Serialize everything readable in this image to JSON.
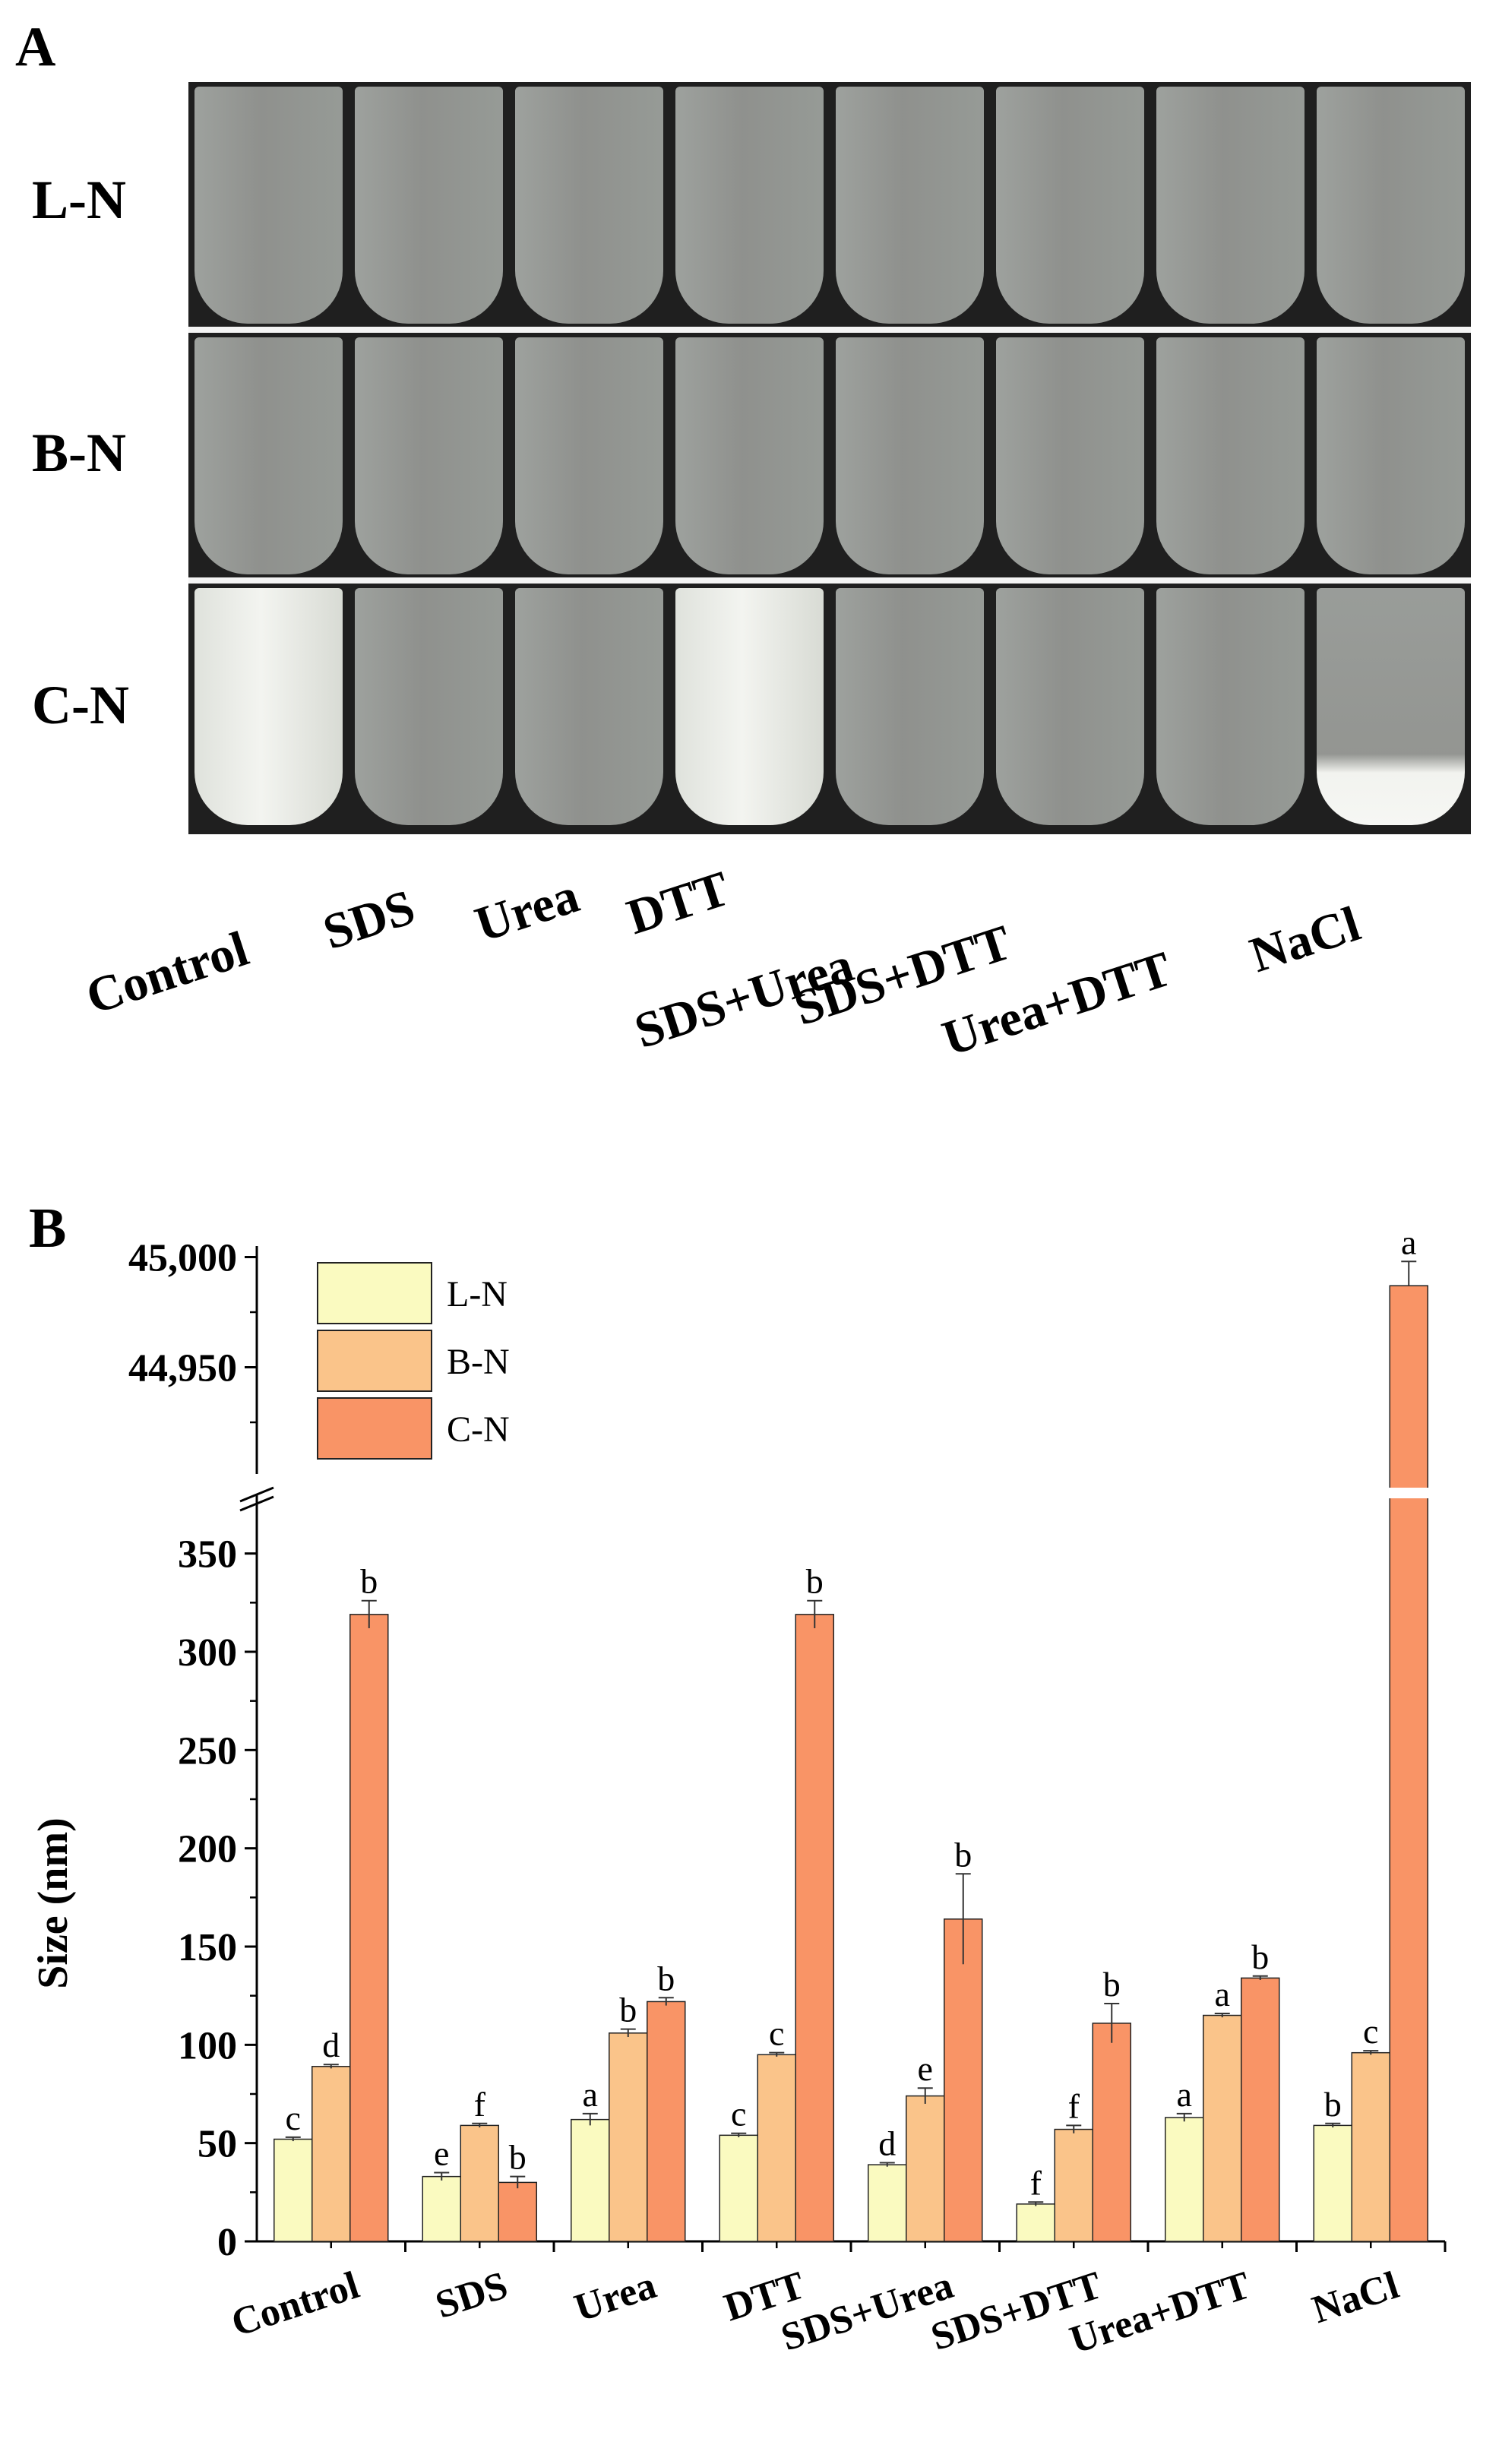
{
  "panel_a": {
    "letter": "A",
    "rows": [
      "L-N",
      "B-N",
      "C-N"
    ],
    "treatments": [
      "Control",
      "SDS",
      "Urea",
      "DTT",
      "SDS+Urea",
      "SDS+DTT",
      "Urea+DTT",
      "NaCl"
    ],
    "cloudy_tubes": {
      "C-N": [
        "Control",
        "DTT"
      ]
    },
    "sediment_tubes": {
      "C-N": [
        "NaCl"
      ]
    }
  },
  "panel_b": {
    "letter": "B"
  },
  "chart_data": {
    "type": "bar",
    "title": "",
    "xlabel": "",
    "ylabel": "Size (nm)",
    "categories": [
      "Control",
      "SDS",
      "Urea",
      "DTT",
      "SDS+Urea",
      "SDS+DTT",
      "Urea+DTT",
      "NaCl"
    ],
    "ylim_lower": [
      0,
      375
    ],
    "ylim_upper": [
      44905,
      45005
    ],
    "axis_break": true,
    "yticks_lower": [
      "0",
      "50",
      "100",
      "150",
      "200",
      "250",
      "300",
      "350"
    ],
    "yticks_upper": [
      "44,950",
      "45,000"
    ],
    "legend_position": "top-left",
    "series": [
      {
        "name": "L-N",
        "color": "#fafac0",
        "values": [
          52,
          33,
          62,
          54,
          39,
          19,
          63,
          59
        ],
        "errors": [
          1,
          2,
          3,
          1,
          1,
          1,
          2,
          1
        ],
        "letters": [
          "c",
          "e",
          "a",
          "c",
          "d",
          "f",
          "a",
          "b"
        ]
      },
      {
        "name": "B-N",
        "color": "#fac48a",
        "values": [
          89,
          59,
          106,
          95,
          74,
          57,
          115,
          96
        ],
        "errors": [
          1,
          1,
          2,
          1,
          4,
          2,
          1,
          1
        ],
        "letters": [
          "d",
          "f",
          "b",
          "c",
          "e",
          "f",
          "a",
          "c"
        ]
      },
      {
        "name": "C-N",
        "color": "#f99466",
        "values": [
          319,
          30,
          122,
          319,
          164,
          111,
          134,
          44987
        ],
        "errors": [
          7,
          3,
          2,
          7,
          23,
          10,
          1,
          11
        ],
        "letters": [
          "b",
          "b",
          "b",
          "b",
          "b",
          "b",
          "b",
          "a"
        ]
      }
    ]
  }
}
